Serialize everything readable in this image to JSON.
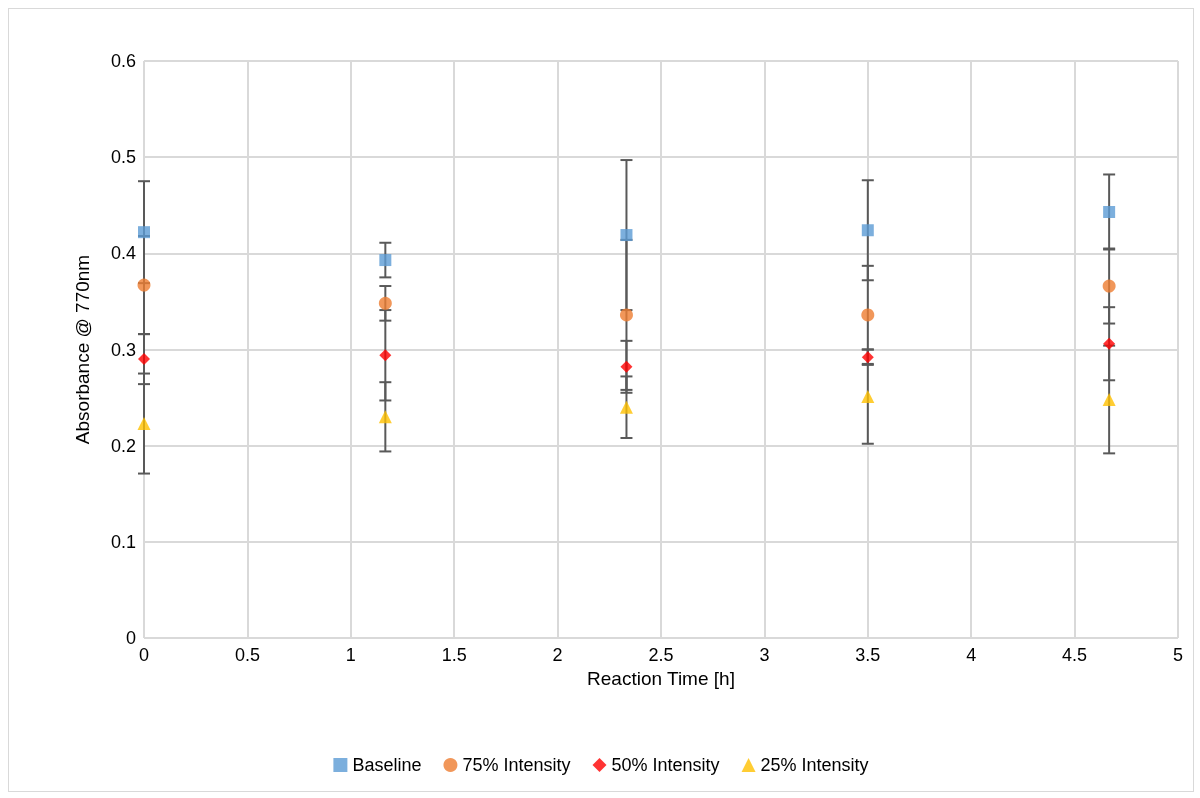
{
  "chart_data": {
    "type": "scatter",
    "xlabel": "Reaction Time [h]",
    "ylabel": "Absorbance @ 770nm",
    "x": [
      0,
      1.167,
      2.333,
      3.5,
      4.667
    ],
    "xlim": [
      0,
      5
    ],
    "xticks": [
      0,
      0.5,
      1,
      1.5,
      2,
      2.5,
      3,
      3.5,
      4,
      4.5,
      5
    ],
    "ylim": [
      0,
      0.6
    ],
    "yticks": [
      0,
      0.1,
      0.2,
      0.3,
      0.4,
      0.5,
      0.6
    ],
    "grid": true,
    "legend": "bottom",
    "series": [
      {
        "name": "Baseline",
        "color": "#5b9bd5",
        "marker": "square",
        "values": [
          0.422,
          0.393,
          0.419,
          0.424,
          0.443
        ],
        "errors": [
          0.053,
          0.018,
          0.078,
          0.052,
          0.039
        ]
      },
      {
        "name": "75% Intensity",
        "color": "#ed7d31",
        "marker": "circle",
        "values": [
          0.367,
          0.348,
          0.336,
          0.336,
          0.366
        ],
        "errors": [
          0.051,
          0.018,
          0.078,
          0.051,
          0.039
        ]
      },
      {
        "name": "50% Intensity",
        "color": "#ff0000",
        "marker": "diamond",
        "values": [
          0.29,
          0.294,
          0.282,
          0.292,
          0.306
        ],
        "errors": [
          0.026,
          0.047,
          0.027,
          0.008,
          0.038
        ]
      },
      {
        "name": "25% Intensity",
        "color": "#ffc000",
        "marker": "triangle",
        "values": [
          0.223,
          0.23,
          0.24,
          0.251,
          0.248
        ],
        "errors": [
          0.052,
          0.036,
          0.032,
          0.049,
          0.056
        ]
      }
    ]
  }
}
